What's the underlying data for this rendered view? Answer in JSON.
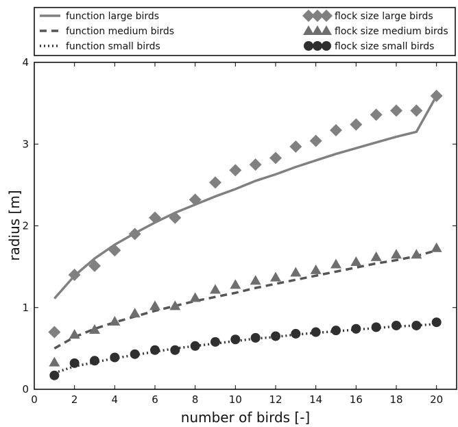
{
  "chart_data": {
    "type": "line",
    "xlabel": "number of birds [-]",
    "ylabel": "radius [m]",
    "xlim": [
      0,
      21
    ],
    "ylim": [
      0,
      4
    ],
    "xticks": [
      "0",
      "2",
      "4",
      "6",
      "8",
      "10",
      "12",
      "14",
      "16",
      "18",
      "20"
    ],
    "yticks": [
      "0",
      "1",
      "2",
      "3",
      "4"
    ],
    "grid": false,
    "legend_position": "top (above plot)",
    "x": [
      1,
      2,
      3,
      4,
      5,
      6,
      7,
      8,
      9,
      10,
      11,
      12,
      13,
      14,
      15,
      16,
      17,
      18,
      19,
      20
    ],
    "series": [
      {
        "name": "function large birds",
        "style": "solid",
        "color": "#808080",
        "values": [
          1.11,
          1.39,
          1.6,
          1.77,
          1.91,
          2.04,
          2.16,
          2.26,
          2.36,
          2.45,
          2.55,
          2.63,
          2.72,
          2.8,
          2.88,
          2.95,
          3.02,
          3.09,
          3.15,
          3.59
        ]
      },
      {
        "name": "function medium birds",
        "style": "dashed",
        "color": "#555555",
        "values": [
          0.5,
          0.64,
          0.74,
          0.82,
          0.89,
          0.96,
          1.02,
          1.08,
          1.13,
          1.18,
          1.24,
          1.29,
          1.34,
          1.39,
          1.44,
          1.49,
          1.54,
          1.58,
          1.63,
          1.7
        ]
      },
      {
        "name": "function small birds",
        "style": "dotted",
        "color": "#333333",
        "values": [
          0.2,
          0.28,
          0.33,
          0.38,
          0.42,
          0.46,
          0.5,
          0.53,
          0.56,
          0.59,
          0.62,
          0.64,
          0.67,
          0.69,
          0.71,
          0.73,
          0.75,
          0.77,
          0.78,
          0.8
        ]
      },
      {
        "name": "flock size large birds",
        "marker": "diamond",
        "color": "#808080",
        "values": [
          0.7,
          1.4,
          1.51,
          1.7,
          1.9,
          2.1,
          2.1,
          2.32,
          2.53,
          2.68,
          2.75,
          2.83,
          2.97,
          3.04,
          3.17,
          3.24,
          3.36,
          3.41,
          3.41,
          3.59
        ]
      },
      {
        "name": "flock size medium birds",
        "marker": "triangle",
        "color": "#6e6e6e",
        "values": [
          0.33,
          0.67,
          0.73,
          0.83,
          0.93,
          1.02,
          1.02,
          1.12,
          1.22,
          1.28,
          1.33,
          1.37,
          1.43,
          1.46,
          1.53,
          1.56,
          1.62,
          1.65,
          1.65,
          1.73
        ]
      },
      {
        "name": "flock size small birds",
        "marker": "circle",
        "color": "#2f2f2f",
        "values": [
          0.17,
          0.32,
          0.35,
          0.39,
          0.43,
          0.48,
          0.48,
          0.53,
          0.58,
          0.61,
          0.63,
          0.65,
          0.68,
          0.7,
          0.72,
          0.74,
          0.76,
          0.78,
          0.78,
          0.82
        ]
      }
    ]
  }
}
